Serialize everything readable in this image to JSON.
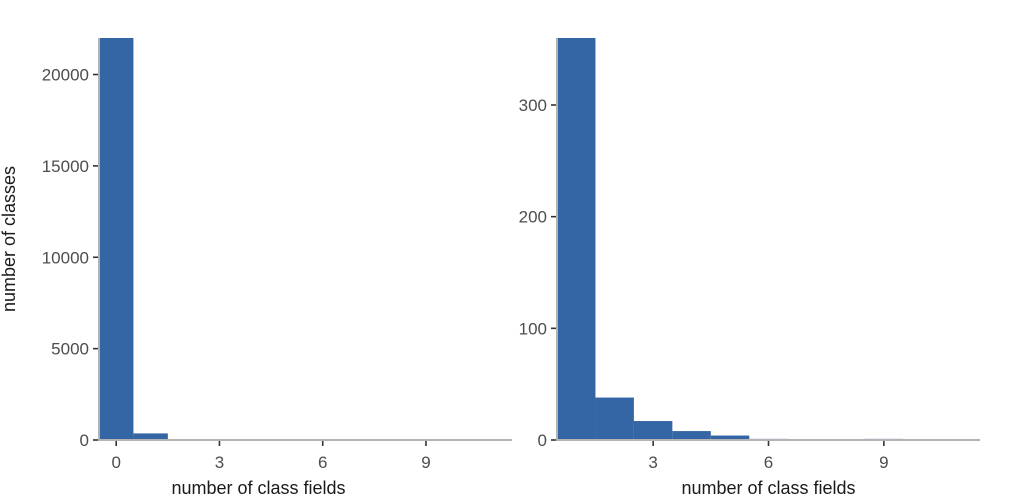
{
  "chart_data": [
    {
      "type": "bar",
      "xlabel": "number of class fields",
      "ylabel": "number of classes",
      "xlim": [
        -0.5,
        11.5
      ],
      "ylim": [
        0,
        22000
      ],
      "x_ticks": [
        "0",
        "3",
        "6",
        "9"
      ],
      "x_tick_values": [
        0,
        3,
        6,
        9
      ],
      "y_ticks": [
        "0",
        "5000",
        "10000",
        "15000",
        "20000"
      ],
      "y_tick_values": [
        0,
        5000,
        10000,
        15000,
        20000
      ],
      "bins": [
        {
          "x0": -0.5,
          "x1": 0.5,
          "count": 22000
        },
        {
          "x0": 0.5,
          "x1": 1.5,
          "count": 360
        },
        {
          "x0": 1.5,
          "x1": 2.5,
          "count": 38
        },
        {
          "x0": 2.5,
          "x1": 3.5,
          "count": 17
        },
        {
          "x0": 3.5,
          "x1": 4.5,
          "count": 8
        },
        {
          "x0": 4.5,
          "x1": 5.5,
          "count": 4
        },
        {
          "x0": 5.5,
          "x1": 6.5,
          "count": 1
        },
        {
          "x0": 6.5,
          "x1": 7.5,
          "count": 0
        },
        {
          "x0": 7.5,
          "x1": 8.5,
          "count": 0
        },
        {
          "x0": 8.5,
          "x1": 9.5,
          "count": 1
        },
        {
          "x0": 9.5,
          "x1": 10.5,
          "count": 0
        },
        {
          "x0": 10.5,
          "x1": 11.5,
          "count": 0
        }
      ],
      "color": "#3465a4"
    },
    {
      "type": "bar",
      "xlabel": "number of class fields",
      "ylabel": "",
      "xlim": [
        0.5,
        11.5
      ],
      "ylim": [
        0,
        360
      ],
      "x_ticks": [
        "3",
        "6",
        "9"
      ],
      "x_tick_values": [
        3,
        6,
        9
      ],
      "y_ticks": [
        "0",
        "100",
        "200",
        "300"
      ],
      "y_tick_values": [
        0,
        100,
        200,
        300
      ],
      "bins": [
        {
          "x0": 0.5,
          "x1": 1.5,
          "count": 360
        },
        {
          "x0": 1.5,
          "x1": 2.5,
          "count": 38
        },
        {
          "x0": 2.5,
          "x1": 3.5,
          "count": 17
        },
        {
          "x0": 3.5,
          "x1": 4.5,
          "count": 8
        },
        {
          "x0": 4.5,
          "x1": 5.5,
          "count": 4
        },
        {
          "x0": 5.5,
          "x1": 6.5,
          "count": 1
        },
        {
          "x0": 6.5,
          "x1": 7.5,
          "count": 0
        },
        {
          "x0": 7.5,
          "x1": 8.5,
          "count": 0
        },
        {
          "x0": 8.5,
          "x1": 9.5,
          "count": 1
        },
        {
          "x0": 9.5,
          "x1": 10.5,
          "count": 0
        },
        {
          "x0": 10.5,
          "x1": 11.5,
          "count": 0
        }
      ],
      "color": "#3465a4"
    }
  ],
  "colors": {
    "bar": "#3465a4",
    "axis_line": "#b3b3b3",
    "tick_mark": "#333333",
    "tick_label": "#4d4d4d",
    "axis_title": "#1a1a1a"
  }
}
